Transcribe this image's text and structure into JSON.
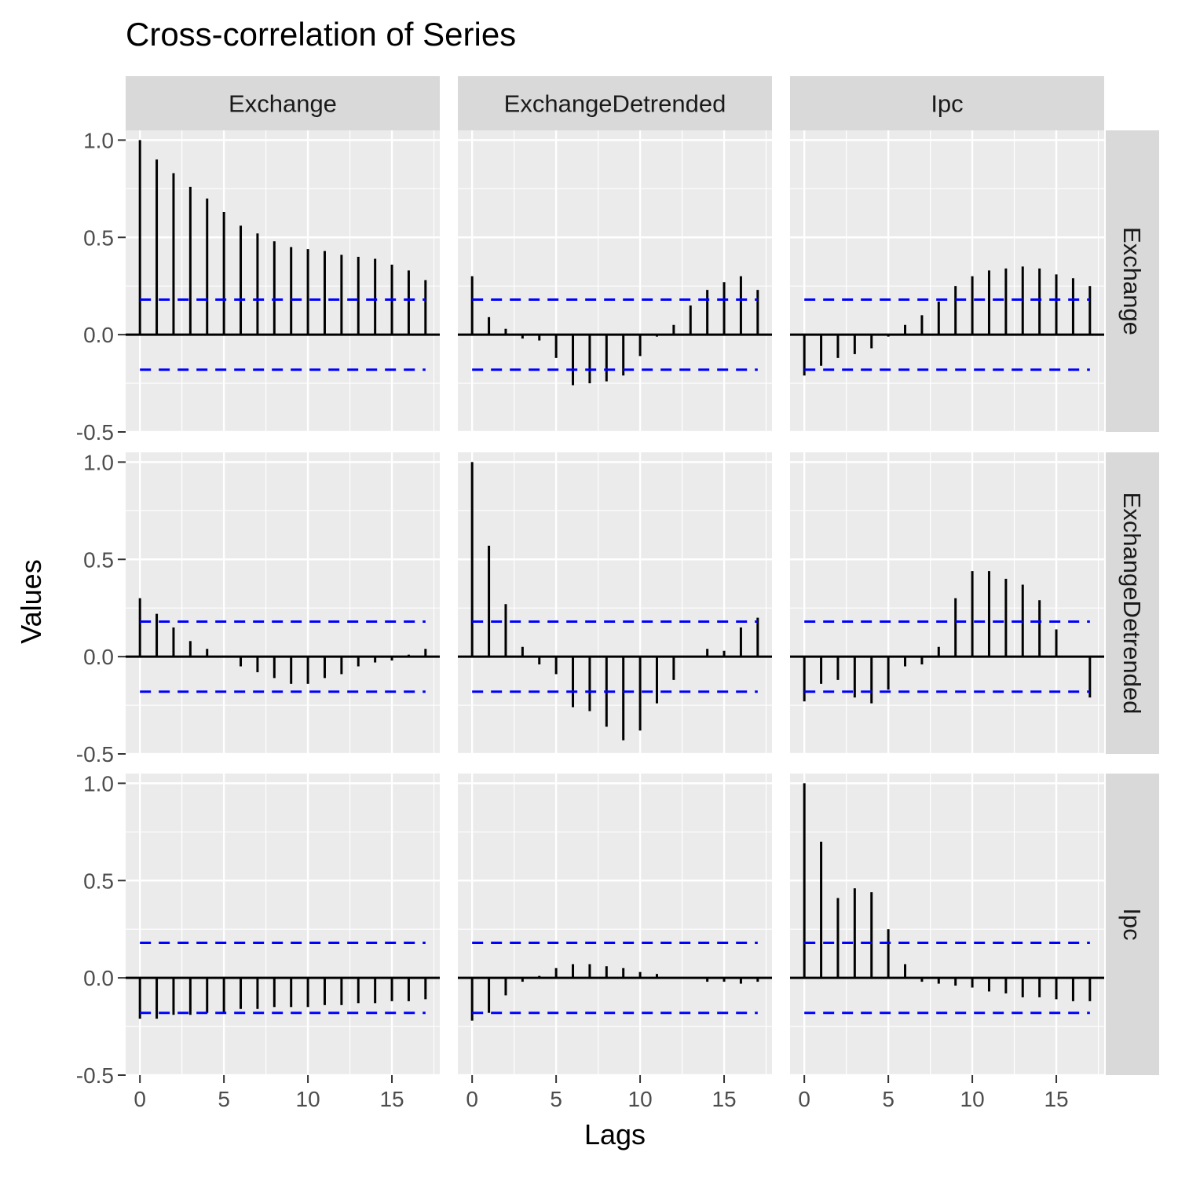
{
  "chart_data": {
    "type": "bar",
    "title": "Cross-correlation of Series",
    "xlabel": "Lags",
    "ylabel": "Values",
    "ylim": [
      -0.5,
      1.05
    ],
    "xlim": [
      -0.85,
      17.85
    ],
    "y_ticks": [
      -0.5,
      0.0,
      0.5,
      1.0
    ],
    "y_tick_labels": [
      "-0.5",
      "0.0",
      "0.5",
      "1.0"
    ],
    "x_ticks": [
      0,
      5,
      10,
      15
    ],
    "x_tick_labels": [
      "0",
      "5",
      "10",
      "15"
    ],
    "confidence_limit": 0.18,
    "grid": true,
    "column_facets": [
      "Exchange",
      "ExchangeDetrended",
      "Ipc"
    ],
    "row_facets": [
      "Exchange",
      "ExchangeDetrended",
      "Ipc"
    ],
    "lags": [
      0,
      1,
      2,
      3,
      4,
      5,
      6,
      7,
      8,
      9,
      10,
      11,
      12,
      13,
      14,
      15,
      16,
      17
    ],
    "panels": [
      {
        "row": "Exchange",
        "col": "Exchange",
        "values": [
          1.0,
          0.9,
          0.83,
          0.76,
          0.7,
          0.63,
          0.56,
          0.52,
          0.48,
          0.45,
          0.44,
          0.43,
          0.41,
          0.4,
          0.39,
          0.36,
          0.33,
          0.28
        ]
      },
      {
        "row": "Exchange",
        "col": "ExchangeDetrended",
        "values": [
          0.3,
          0.09,
          0.03,
          -0.02,
          -0.03,
          -0.12,
          -0.26,
          -0.25,
          -0.24,
          -0.21,
          -0.11,
          -0.01,
          0.05,
          0.15,
          0.23,
          0.27,
          0.3,
          0.23
        ]
      },
      {
        "row": "Exchange",
        "col": "Ipc",
        "values": [
          -0.21,
          -0.16,
          -0.12,
          -0.1,
          -0.07,
          -0.01,
          0.05,
          0.1,
          0.17,
          0.25,
          0.3,
          0.33,
          0.34,
          0.35,
          0.34,
          0.31,
          0.29,
          0.25
        ]
      },
      {
        "row": "ExchangeDetrended",
        "col": "Exchange",
        "values": [
          0.3,
          0.22,
          0.15,
          0.08,
          0.04,
          0.0,
          -0.05,
          -0.08,
          -0.11,
          -0.14,
          -0.14,
          -0.11,
          -0.09,
          -0.05,
          -0.03,
          -0.02,
          0.01,
          0.04
        ]
      },
      {
        "row": "ExchangeDetrended",
        "col": "ExchangeDetrended",
        "values": [
          1.0,
          0.57,
          0.27,
          0.05,
          -0.04,
          -0.09,
          -0.26,
          -0.28,
          -0.36,
          -0.43,
          -0.38,
          -0.24,
          -0.12,
          0.0,
          0.04,
          0.03,
          0.15,
          0.2
        ]
      },
      {
        "row": "ExchangeDetrended",
        "col": "Ipc",
        "values": [
          -0.23,
          -0.14,
          -0.12,
          -0.21,
          -0.24,
          -0.17,
          -0.05,
          -0.04,
          0.05,
          0.3,
          0.44,
          0.44,
          0.4,
          0.37,
          0.29,
          0.14,
          0.0,
          -0.21
        ]
      },
      {
        "row": "Ipc",
        "col": "Exchange",
        "values": [
          -0.21,
          -0.21,
          -0.19,
          -0.19,
          -0.18,
          -0.18,
          -0.16,
          -0.16,
          -0.15,
          -0.15,
          -0.15,
          -0.14,
          -0.14,
          -0.13,
          -0.13,
          -0.12,
          -0.12,
          -0.11
        ]
      },
      {
        "row": "Ipc",
        "col": "ExchangeDetrended",
        "values": [
          -0.22,
          -0.18,
          -0.09,
          -0.02,
          0.01,
          0.05,
          0.07,
          0.07,
          0.06,
          0.05,
          0.03,
          0.02,
          0.0,
          0.0,
          -0.02,
          -0.02,
          -0.03,
          -0.02
        ]
      },
      {
        "row": "Ipc",
        "col": "Ipc",
        "values": [
          1.0,
          0.7,
          0.41,
          0.46,
          0.44,
          0.25,
          0.07,
          -0.02,
          -0.03,
          -0.04,
          -0.05,
          -0.07,
          -0.08,
          -0.1,
          -0.1,
          -0.11,
          -0.12,
          -0.12
        ]
      }
    ]
  }
}
